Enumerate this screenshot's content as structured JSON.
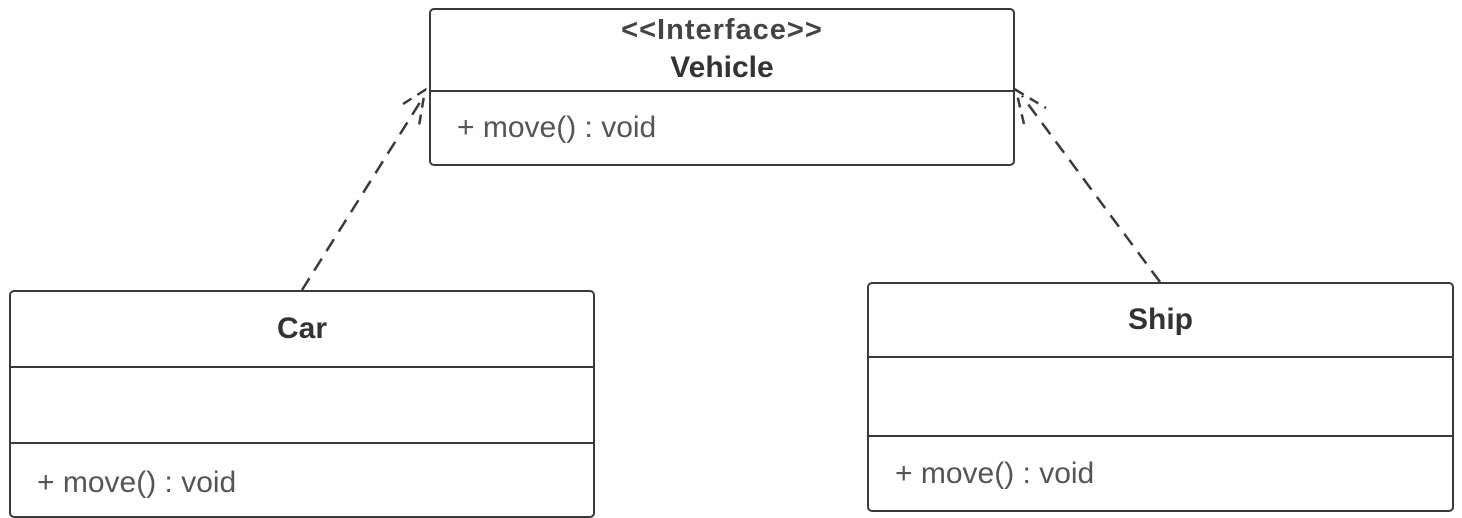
{
  "diagram": {
    "interface": {
      "stereotype": "<<Interface>>",
      "name": "Vehicle",
      "operations": [
        "+ move() : void"
      ]
    },
    "classes": [
      {
        "name": "Car",
        "attributes": [],
        "operations": [
          "+ move() : void"
        ]
      },
      {
        "name": "Ship",
        "attributes": [],
        "operations": [
          "+ move() : void"
        ]
      }
    ],
    "relations": [
      {
        "from": "Car",
        "to": "Vehicle",
        "type": "realization"
      },
      {
        "from": "Ship",
        "to": "Vehicle",
        "type": "realization"
      }
    ],
    "colors": {
      "line": "#3a3a3a",
      "background": "#ffffff",
      "text": "#333333"
    }
  }
}
